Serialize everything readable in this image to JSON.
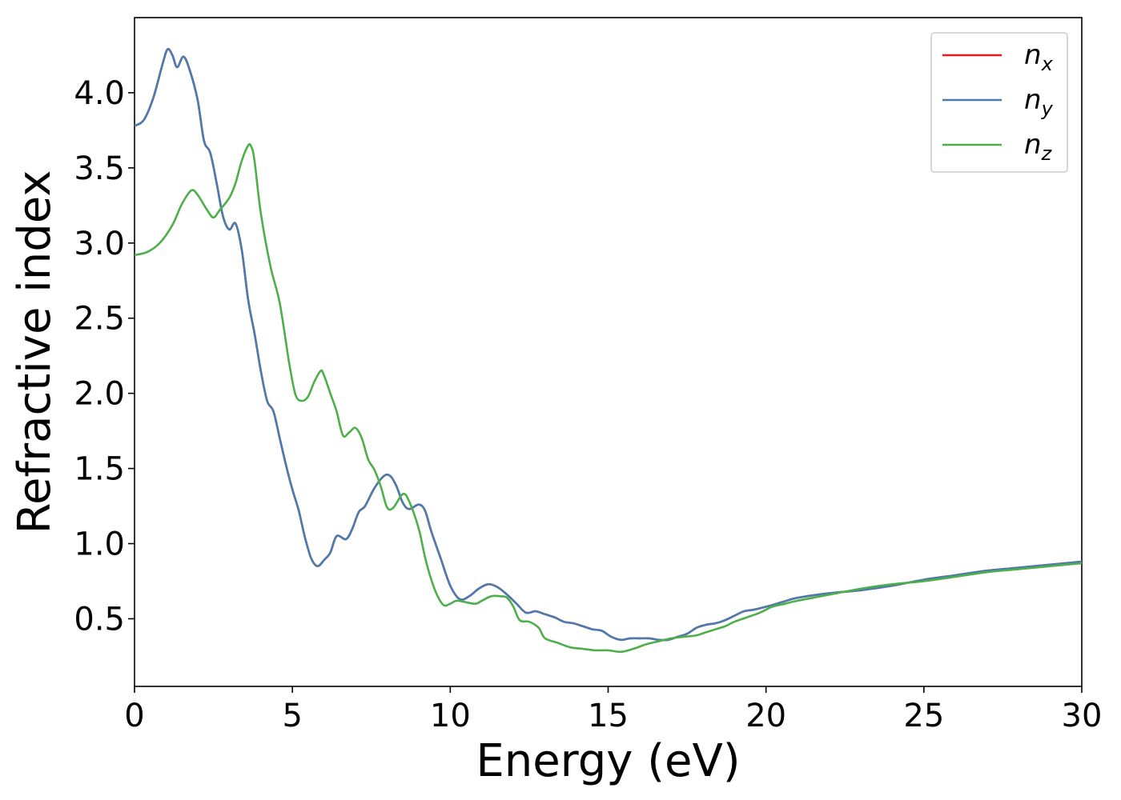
{
  "chart_data": {
    "type": "line",
    "xlabel": "Energy (eV)",
    "ylabel": "Refractive index",
    "xlim": [
      0,
      30
    ],
    "ylim": [
      0.05,
      4.5
    ],
    "xticks": [
      0,
      5,
      10,
      15,
      20,
      25,
      30
    ],
    "xtick_labels": [
      "0",
      "5",
      "10",
      "15",
      "20",
      "25",
      "30"
    ],
    "yticks": [
      0.5,
      1.0,
      1.5,
      2.0,
      2.5,
      3.0,
      3.5,
      4.0
    ],
    "ytick_labels": [
      "0.5",
      "1.0",
      "1.5",
      "2.0",
      "2.5",
      "3.0",
      "3.5",
      "4.0"
    ],
    "grid": false,
    "legend_position": "top-right",
    "series": [
      {
        "name": "n_x",
        "label_base": "n",
        "label_sub": "x",
        "color": "#e41a1c",
        "x": [
          0,
          0.3,
          0.6,
          0.9,
          1.05,
          1.2,
          1.35,
          1.55,
          1.75,
          2.0,
          2.2,
          2.4,
          2.6,
          2.8,
          3.0,
          3.2,
          3.4,
          3.6,
          3.8,
          4.0,
          4.2,
          4.4,
          4.6,
          4.8,
          5.0,
          5.2,
          5.4,
          5.6,
          5.8,
          6.0,
          6.2,
          6.4,
          6.7,
          6.9,
          7.1,
          7.3,
          7.6,
          7.9,
          8.1,
          8.3,
          8.5,
          8.7,
          9.0,
          9.2,
          9.4,
          9.7,
          10.0,
          10.3,
          10.6,
          10.9,
          11.2,
          11.5,
          11.8,
          12.1,
          12.4,
          12.7,
          13.0,
          13.3,
          13.6,
          13.9,
          14.2,
          14.5,
          14.8,
          15.1,
          15.4,
          15.7,
          16.0,
          16.3,
          16.6,
          16.9,
          17.2,
          17.5,
          17.8,
          18.1,
          18.4,
          18.7,
          19.0,
          19.3,
          19.6,
          20.0,
          20.5,
          21.0,
          22.0,
          23.0,
          24.0,
          25.0,
          26.0,
          27.0,
          28.0,
          29.0,
          30.0
        ],
        "y": [
          3.78,
          3.82,
          3.97,
          4.2,
          4.29,
          4.25,
          4.17,
          4.24,
          4.15,
          3.95,
          3.68,
          3.6,
          3.4,
          3.18,
          3.09,
          3.13,
          2.95,
          2.62,
          2.4,
          2.15,
          1.95,
          1.88,
          1.7,
          1.52,
          1.36,
          1.22,
          1.04,
          0.9,
          0.85,
          0.89,
          0.94,
          1.05,
          1.03,
          1.1,
          1.21,
          1.25,
          1.37,
          1.45,
          1.45,
          1.38,
          1.27,
          1.23,
          1.26,
          1.22,
          1.08,
          0.9,
          0.72,
          0.63,
          0.65,
          0.7,
          0.73,
          0.71,
          0.66,
          0.6,
          0.54,
          0.55,
          0.53,
          0.51,
          0.48,
          0.47,
          0.45,
          0.43,
          0.42,
          0.38,
          0.36,
          0.37,
          0.37,
          0.37,
          0.36,
          0.36,
          0.38,
          0.4,
          0.44,
          0.46,
          0.47,
          0.49,
          0.52,
          0.55,
          0.56,
          0.58,
          0.61,
          0.64,
          0.67,
          0.69,
          0.72,
          0.76,
          0.79,
          0.82,
          0.84,
          0.86,
          0.88
        ]
      },
      {
        "name": "n_y",
        "label_base": "n",
        "label_sub": "y",
        "color": "#4a7cb0",
        "x": [
          0,
          0.3,
          0.6,
          0.9,
          1.05,
          1.2,
          1.35,
          1.55,
          1.75,
          2.0,
          2.2,
          2.4,
          2.6,
          2.8,
          3.0,
          3.2,
          3.4,
          3.6,
          3.8,
          4.0,
          4.2,
          4.4,
          4.6,
          4.8,
          5.0,
          5.2,
          5.4,
          5.6,
          5.8,
          6.0,
          6.2,
          6.4,
          6.7,
          6.9,
          7.1,
          7.3,
          7.6,
          7.9,
          8.1,
          8.3,
          8.5,
          8.7,
          9.0,
          9.2,
          9.4,
          9.7,
          10.0,
          10.3,
          10.6,
          10.9,
          11.2,
          11.5,
          11.8,
          12.1,
          12.4,
          12.7,
          13.0,
          13.3,
          13.6,
          13.9,
          14.2,
          14.5,
          14.8,
          15.1,
          15.4,
          15.7,
          16.0,
          16.3,
          16.6,
          16.9,
          17.2,
          17.5,
          17.8,
          18.1,
          18.4,
          18.7,
          19.0,
          19.3,
          19.6,
          20.0,
          20.5,
          21.0,
          22.0,
          23.0,
          24.0,
          25.0,
          26.0,
          27.0,
          28.0,
          29.0,
          30.0
        ],
        "y": [
          3.78,
          3.82,
          3.97,
          4.2,
          4.29,
          4.25,
          4.17,
          4.24,
          4.15,
          3.95,
          3.68,
          3.6,
          3.4,
          3.18,
          3.09,
          3.13,
          2.95,
          2.62,
          2.4,
          2.15,
          1.95,
          1.88,
          1.7,
          1.52,
          1.36,
          1.22,
          1.04,
          0.9,
          0.85,
          0.89,
          0.94,
          1.05,
          1.03,
          1.1,
          1.21,
          1.25,
          1.37,
          1.45,
          1.45,
          1.38,
          1.27,
          1.23,
          1.26,
          1.22,
          1.08,
          0.9,
          0.72,
          0.63,
          0.65,
          0.7,
          0.73,
          0.71,
          0.66,
          0.6,
          0.54,
          0.55,
          0.53,
          0.51,
          0.48,
          0.47,
          0.45,
          0.43,
          0.42,
          0.38,
          0.36,
          0.37,
          0.37,
          0.37,
          0.36,
          0.36,
          0.38,
          0.4,
          0.44,
          0.46,
          0.47,
          0.49,
          0.52,
          0.55,
          0.56,
          0.58,
          0.61,
          0.64,
          0.67,
          0.69,
          0.72,
          0.76,
          0.79,
          0.82,
          0.84,
          0.86,
          0.88
        ]
      },
      {
        "name": "n_z",
        "label_base": "n",
        "label_sub": "z",
        "color": "#4daf4a",
        "x": [
          0,
          0.4,
          0.8,
          1.2,
          1.5,
          1.8,
          2.0,
          2.3,
          2.5,
          2.7,
          3.0,
          3.2,
          3.4,
          3.6,
          3.7,
          3.8,
          4.0,
          4.3,
          4.6,
          4.9,
          5.1,
          5.3,
          5.5,
          5.7,
          5.9,
          6.0,
          6.2,
          6.4,
          6.6,
          6.8,
          7.0,
          7.2,
          7.4,
          7.6,
          7.8,
          8.0,
          8.2,
          8.5,
          8.7,
          9.0,
          9.2,
          9.4,
          9.6,
          9.8,
          10.0,
          10.2,
          10.5,
          10.8,
          11.0,
          11.3,
          11.6,
          11.8,
          12.0,
          12.2,
          12.5,
          12.8,
          13.0,
          13.4,
          13.8,
          14.2,
          14.6,
          15.0,
          15.4,
          15.8,
          16.2,
          16.6,
          17.0,
          17.4,
          17.8,
          18.1,
          18.4,
          18.7,
          19.0,
          19.4,
          19.8,
          20.2,
          20.6,
          21.0,
          22.0,
          23.0,
          24.0,
          25.0,
          26.0,
          27.0,
          28.0,
          29.0,
          30.0
        ],
        "y": [
          2.92,
          2.94,
          3.0,
          3.12,
          3.26,
          3.35,
          3.32,
          3.22,
          3.17,
          3.22,
          3.3,
          3.4,
          3.55,
          3.65,
          3.64,
          3.55,
          3.2,
          2.85,
          2.6,
          2.2,
          1.99,
          1.95,
          1.98,
          2.08,
          2.15,
          2.12,
          2.0,
          1.88,
          1.72,
          1.74,
          1.77,
          1.7,
          1.56,
          1.49,
          1.38,
          1.24,
          1.24,
          1.33,
          1.28,
          1.1,
          0.91,
          0.76,
          0.65,
          0.59,
          0.6,
          0.62,
          0.61,
          0.6,
          0.62,
          0.65,
          0.65,
          0.64,
          0.58,
          0.49,
          0.48,
          0.44,
          0.37,
          0.34,
          0.31,
          0.3,
          0.29,
          0.29,
          0.28,
          0.3,
          0.33,
          0.35,
          0.37,
          0.38,
          0.39,
          0.41,
          0.43,
          0.45,
          0.48,
          0.51,
          0.54,
          0.58,
          0.6,
          0.62,
          0.66,
          0.7,
          0.73,
          0.75,
          0.78,
          0.81,
          0.83,
          0.85,
          0.87
        ]
      }
    ]
  }
}
